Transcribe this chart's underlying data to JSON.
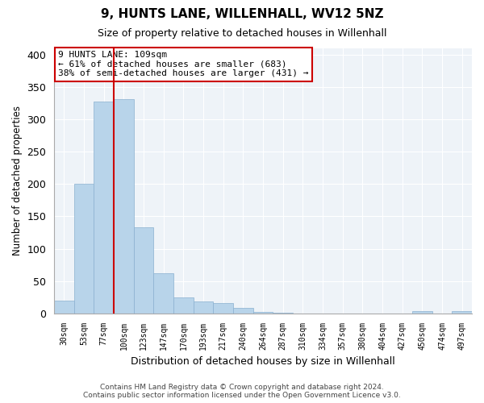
{
  "title": "9, HUNTS LANE, WILLENHALL, WV12 5NZ",
  "subtitle": "Size of property relative to detached houses in Willenhall",
  "xlabel": "Distribution of detached houses by size in Willenhall",
  "ylabel": "Number of detached properties",
  "bar_color": "#b8d4ea",
  "bar_edge_color": "#8ab0d0",
  "background_color": "#ffffff",
  "plot_bg_color": "#eef3f8",
  "grid_color": "#ffffff",
  "bin_labels": [
    "30sqm",
    "53sqm",
    "77sqm",
    "100sqm",
    "123sqm",
    "147sqm",
    "170sqm",
    "193sqm",
    "217sqm",
    "240sqm",
    "264sqm",
    "287sqm",
    "310sqm",
    "334sqm",
    "357sqm",
    "380sqm",
    "404sqm",
    "427sqm",
    "450sqm",
    "474sqm",
    "497sqm"
  ],
  "bar_heights": [
    20,
    200,
    328,
    332,
    133,
    62,
    25,
    18,
    16,
    8,
    2,
    1,
    0,
    0,
    0,
    0,
    0,
    0,
    3,
    0,
    3
  ],
  "property_line_bin_index": 3.0,
  "ylim": [
    0,
    410
  ],
  "yticks": [
    0,
    50,
    100,
    150,
    200,
    250,
    300,
    350,
    400
  ],
  "annotation_title": "9 HUNTS LANE: 109sqm",
  "annotation_line1": "← 61% of detached houses are smaller (683)",
  "annotation_line2": "38% of semi-detached houses are larger (431) →",
  "annotation_box_color": "#ffffff",
  "annotation_box_edge": "#cc0000",
  "red_line_color": "#cc0000",
  "footer_line1": "Contains HM Land Registry data © Crown copyright and database right 2024.",
  "footer_line2": "Contains public sector information licensed under the Open Government Licence v3.0."
}
